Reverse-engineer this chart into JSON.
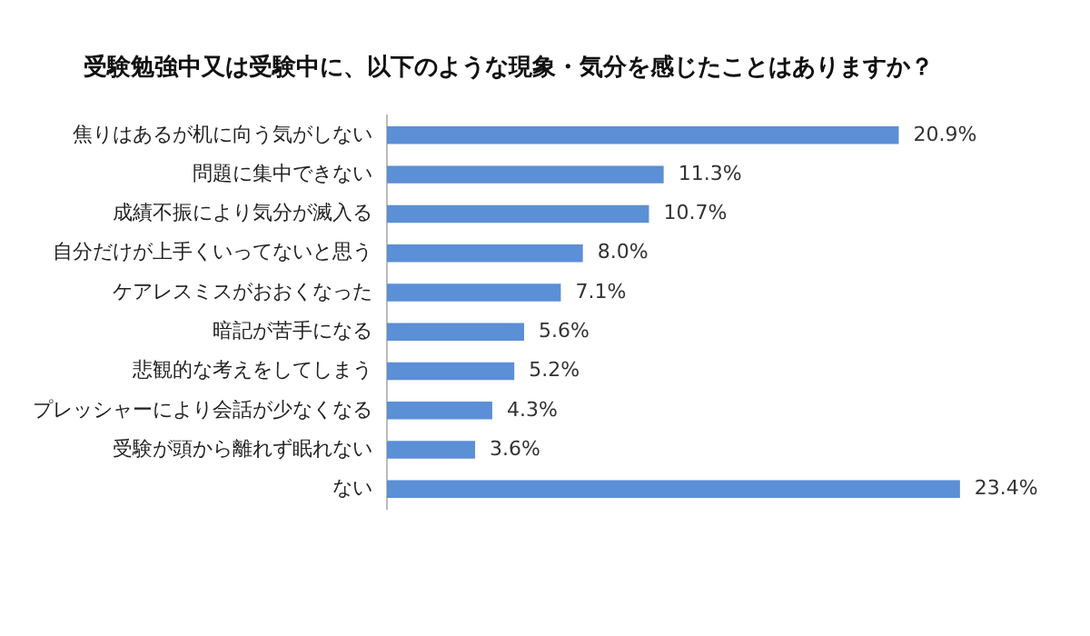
{
  "chart_data": {
    "type": "bar",
    "orientation": "horizontal",
    "title": "受験勉強中又は受験中に、以下のような現象・気分を感じたことはありますか？",
    "categories": [
      "焦りはあるが机に向う気がしない",
      "問題に集中できない",
      "成績不振により気分が滅入る",
      "自分だけが上手くいってないと思う",
      "ケアレスミスがおおくなった",
      "暗記が苦手になる",
      "悲観的な考えをしてしまう",
      "プレッシャーにより会話が少なくなる",
      "受験が頭から離れず眠れない",
      "ない"
    ],
    "values": [
      20.9,
      11.3,
      10.7,
      8.0,
      7.1,
      5.6,
      5.2,
      4.3,
      3.6,
      23.4
    ],
    "value_labels": [
      "20.9%",
      "11.3%",
      "10.7%",
      "8.0%",
      "7.1%",
      "5.6%",
      "5.2%",
      "4.3%",
      "3.6%",
      "23.4%"
    ],
    "color": "#5b8fd6",
    "tick_labels": "y",
    "grid": false,
    "legend": false
  }
}
